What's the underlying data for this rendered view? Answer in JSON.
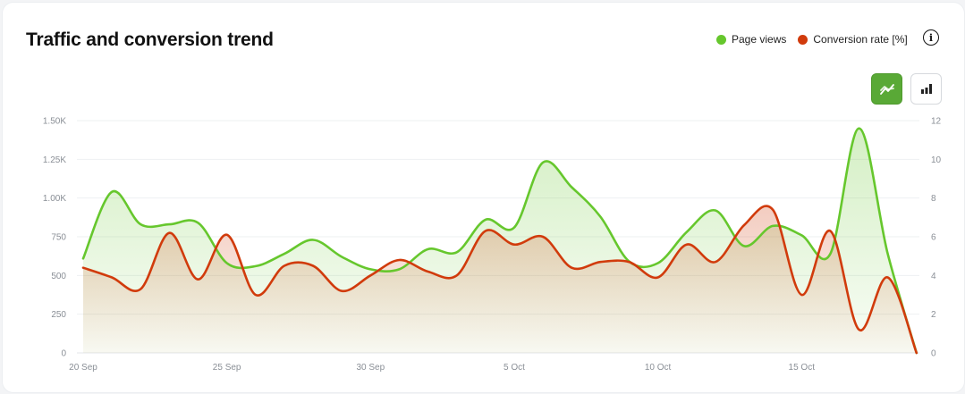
{
  "header": {
    "title": "Traffic and conversion trend"
  },
  "legend": [
    {
      "label": "Page views",
      "color": "#66c72d"
    },
    {
      "label": "Conversion rate [%]",
      "color": "#d13b0c"
    }
  ],
  "toolbar": {
    "info_icon": "info-icon",
    "line_view_icon": "line-chart-icon",
    "bar_view_icon": "bar-chart-icon",
    "active_view": "line"
  },
  "chart_data": {
    "type": "area",
    "x": [
      "20 Sep",
      "21 Sep",
      "22 Sep",
      "23 Sep",
      "24 Sep",
      "25 Sep",
      "26 Sep",
      "27 Sep",
      "28 Sep",
      "29 Sep",
      "30 Sep",
      "1 Oct",
      "2 Oct",
      "3 Oct",
      "4 Oct",
      "5 Oct",
      "6 Oct",
      "7 Oct",
      "8 Oct",
      "9 Oct",
      "10 Oct",
      "11 Oct",
      "12 Oct",
      "13 Oct",
      "14 Oct",
      "15 Oct",
      "16 Oct",
      "17 Oct",
      "18 Oct",
      "19 Oct"
    ],
    "x_tick_labels": [
      "20 Sep",
      "25 Sep",
      "30 Sep",
      "5 Oct",
      "10 Oct",
      "15 Oct"
    ],
    "series": [
      {
        "name": "Page views",
        "axis": "left",
        "color": "#66c72d",
        "values": [
          610,
          1040,
          830,
          830,
          840,
          580,
          560,
          640,
          730,
          620,
          540,
          540,
          670,
          650,
          860,
          810,
          1230,
          1070,
          880,
          590,
          580,
          780,
          920,
          690,
          820,
          760,
          640,
          1450,
          640,
          0
        ]
      },
      {
        "name": "Conversion rate [%]",
        "axis": "right",
        "color": "#d13b0c",
        "values": [
          4.4,
          3.9,
          3.3,
          6.2,
          3.8,
          6.1,
          3.0,
          4.5,
          4.5,
          3.2,
          4.0,
          4.8,
          4.2,
          4.0,
          6.3,
          5.6,
          6.0,
          4.4,
          4.7,
          4.7,
          3.9,
          5.6,
          4.7,
          6.6,
          7.4,
          3.0,
          6.3,
          1.2,
          3.9,
          0.0
        ]
      }
    ],
    "y_left": {
      "ticks": [
        "0",
        "250",
        "500",
        "750",
        "1.00K",
        "1.25K",
        "1.50K"
      ],
      "range": [
        0,
        1500
      ]
    },
    "y_right": {
      "ticks": [
        "0",
        "2",
        "4",
        "6",
        "8",
        "10",
        "12"
      ],
      "range": [
        0,
        12
      ]
    },
    "grid": true,
    "legend_position": "top-right"
  }
}
